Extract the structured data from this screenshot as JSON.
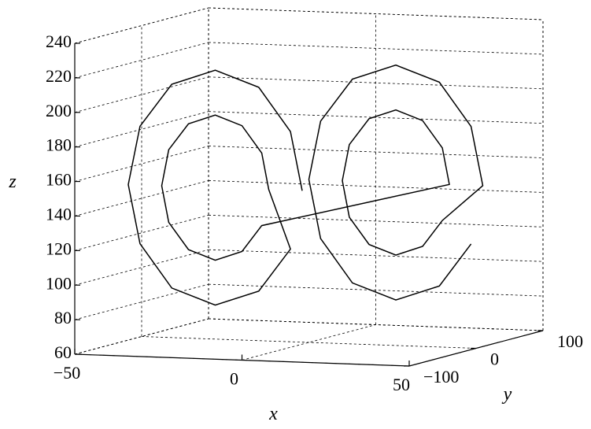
{
  "chart_data": {
    "type": "line3d",
    "series": [
      {
        "color": "#000000",
        "x": [
          2,
          -1.5,
          -11,
          -24,
          -37,
          -46.5,
          -50,
          -46.5,
          -37,
          -24,
          -11,
          -1.5,
          -8,
          -10.1,
          -16,
          -24,
          -32,
          -37.9,
          -40,
          -37.9,
          -32,
          -24,
          -16,
          -10.1,
          38,
          35.9,
          30,
          22,
          14,
          8.1,
          6,
          8.1,
          14,
          22,
          30,
          35.9,
          48,
          44.5,
          35,
          22,
          9,
          -0.5,
          -4,
          -0.5,
          9,
          22,
          35,
          44.5
        ],
        "y": [
          -20,
          -20,
          -20,
          -20,
          -20,
          -20,
          -20,
          -20,
          -20,
          -20,
          -20,
          -20,
          -20,
          -20,
          -20,
          -20,
          -20,
          -20,
          -20,
          -20,
          -20,
          -20,
          -20,
          -20,
          20,
          20,
          20,
          20,
          20,
          20,
          20,
          20,
          20,
          20,
          20,
          20,
          20,
          20,
          20,
          20,
          20,
          20,
          20,
          20,
          20,
          20,
          20,
          20
        ],
        "z": [
          150,
          184,
          209,
          218,
          209,
          184,
          150,
          116,
          91,
          82,
          91,
          116,
          150,
          171,
          186.4,
          192,
          186.4,
          171,
          150,
          129,
          113.6,
          108,
          113.6,
          129,
          152,
          173,
          188.4,
          194,
          188.4,
          173,
          152,
          131,
          115.6,
          110,
          115.6,
          131,
          152,
          186,
          211,
          220,
          211,
          186,
          152,
          118,
          93,
          84,
          93,
          118
        ]
      }
    ],
    "xlabel": "x",
    "ylabel": "y",
    "zlabel": "z",
    "xlim": [
      -50,
      50
    ],
    "ylim": [
      -100,
      100
    ],
    "zlim": [
      60,
      240
    ],
    "xticks": [
      {
        "value": -50,
        "label": "−50"
      },
      0,
      50
    ],
    "yticks": [
      {
        "value": -100,
        "label": "−100"
      },
      0,
      100
    ],
    "zticks": [
      60,
      80,
      100,
      120,
      140,
      160,
      180,
      200,
      220,
      240
    ],
    "grid": true
  }
}
